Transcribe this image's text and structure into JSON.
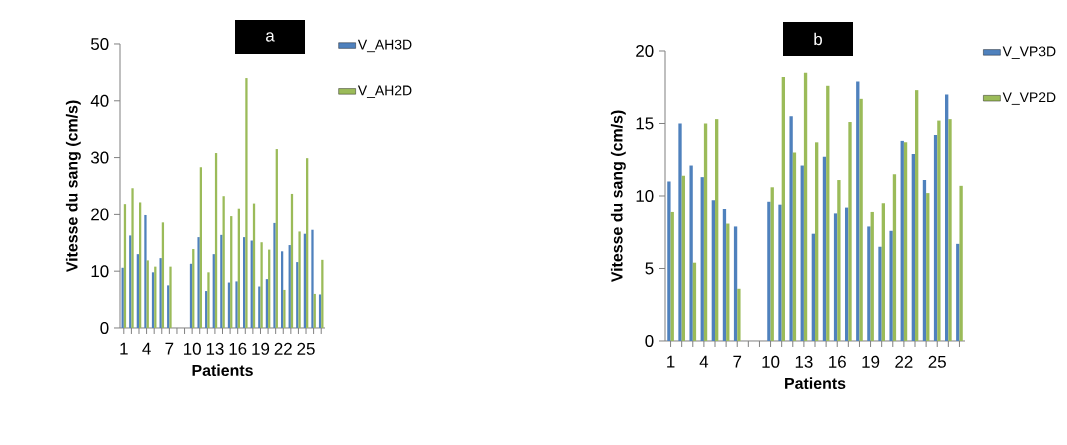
{
  "chart_data": [
    {
      "type": "bar",
      "annotations": [
        "a"
      ],
      "xlabel": "Patients",
      "ylabel": "Vitesse du sang (cm/s)",
      "categories": [
        "1",
        null,
        null,
        "4",
        null,
        null,
        "7",
        null,
        null,
        "10",
        null,
        null,
        "13",
        null,
        null,
        "16",
        null,
        null,
        "19",
        null,
        null,
        "22",
        null,
        null,
        "25",
        null,
        null
      ],
      "ylim": [
        0,
        50
      ],
      "yticks": [
        0,
        10,
        20,
        30,
        40,
        50
      ],
      "legend": "top right",
      "grid": false,
      "series": [
        {
          "name": "V_AH3D",
          "color": "#4f81bd",
          "values": [
            10.6,
            16.3,
            13.0,
            19.9,
            9.8,
            12.3,
            7.5,
            null,
            null,
            11.3,
            16.0,
            6.5,
            13.0,
            16.4,
            8.0,
            8.2,
            16.0,
            15.4,
            7.3,
            8.6,
            18.5,
            13.5,
            14.6,
            11.6,
            16.6,
            17.3,
            5.9
          ]
        },
        {
          "name": "V_AH2D",
          "color": "#9bbb59",
          "values": [
            21.8,
            24.6,
            22.1,
            11.9,
            10.8,
            18.6,
            10.8,
            null,
            null,
            13.9,
            28.3,
            9.8,
            30.8,
            23.2,
            19.7,
            21.0,
            44.0,
            21.9,
            15.1,
            13.8,
            31.5,
            6.7,
            23.6,
            17.0,
            29.9,
            6.0,
            12.0
          ]
        }
      ]
    },
    {
      "type": "bar",
      "annotations": [
        "b"
      ],
      "xlabel": "Patients",
      "ylabel": "Vitesse du sang (cm/s)",
      "categories": [
        "1",
        null,
        null,
        "4",
        null,
        null,
        "7",
        null,
        null,
        "10",
        null,
        null,
        "13",
        null,
        null,
        "16",
        null,
        null,
        "19",
        null,
        null,
        "22",
        null,
        null,
        "25",
        null,
        null
      ],
      "ylim": [
        0,
        20
      ],
      "yticks": [
        0,
        5,
        10,
        15,
        20
      ],
      "legend": "top right",
      "grid": false,
      "series": [
        {
          "name": "V_VP3D",
          "color": "#4f81bd",
          "values": [
            11.0,
            15.0,
            12.1,
            11.3,
            9.7,
            9.1,
            7.9,
            null,
            null,
            9.6,
            9.4,
            15.5,
            12.1,
            7.4,
            12.7,
            8.8,
            9.2,
            17.9,
            7.9,
            6.5,
            7.6,
            13.8,
            12.9,
            11.1,
            14.2,
            17.0,
            6.7
          ]
        },
        {
          "name": "V_VP2D",
          "color": "#9bbb59",
          "values": [
            8.9,
            11.4,
            5.4,
            15.0,
            15.3,
            8.1,
            3.6,
            null,
            null,
            10.6,
            18.2,
            13.0,
            18.5,
            13.7,
            17.6,
            11.1,
            15.1,
            16.7,
            8.9,
            9.5,
            11.5,
            13.7,
            17.3,
            10.2,
            15.2,
            15.3,
            10.7
          ]
        }
      ]
    }
  ]
}
